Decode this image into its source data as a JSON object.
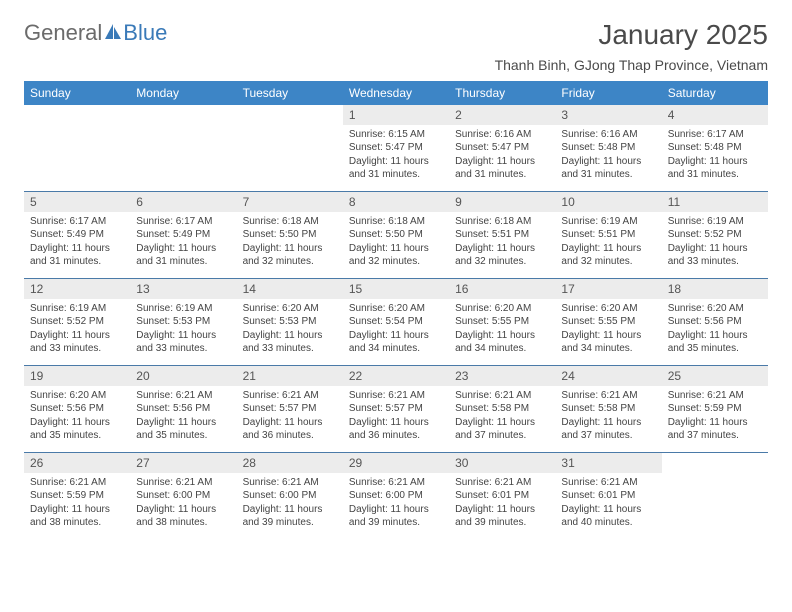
{
  "logo": {
    "text1": "General",
    "text2": "Blue"
  },
  "title": "January 2025",
  "location": "Thanh Binh, GJong Thap Province, Vietnam",
  "colors": {
    "header_bg": "#3d85c6",
    "header_text": "#ffffff",
    "daynum_bg": "#ececec",
    "border": "#4a7aa8",
    "logo_gray": "#6b6b6b",
    "logo_blue": "#3a7ab8"
  },
  "weekdays": [
    "Sunday",
    "Monday",
    "Tuesday",
    "Wednesday",
    "Thursday",
    "Friday",
    "Saturday"
  ],
  "weeks": [
    [
      null,
      null,
      null,
      {
        "n": "1",
        "sr": "6:15 AM",
        "ss": "5:47 PM",
        "dl": "11 hours and 31 minutes."
      },
      {
        "n": "2",
        "sr": "6:16 AM",
        "ss": "5:47 PM",
        "dl": "11 hours and 31 minutes."
      },
      {
        "n": "3",
        "sr": "6:16 AM",
        "ss": "5:48 PM",
        "dl": "11 hours and 31 minutes."
      },
      {
        "n": "4",
        "sr": "6:17 AM",
        "ss": "5:48 PM",
        "dl": "11 hours and 31 minutes."
      }
    ],
    [
      {
        "n": "5",
        "sr": "6:17 AM",
        "ss": "5:49 PM",
        "dl": "11 hours and 31 minutes."
      },
      {
        "n": "6",
        "sr": "6:17 AM",
        "ss": "5:49 PM",
        "dl": "11 hours and 31 minutes."
      },
      {
        "n": "7",
        "sr": "6:18 AM",
        "ss": "5:50 PM",
        "dl": "11 hours and 32 minutes."
      },
      {
        "n": "8",
        "sr": "6:18 AM",
        "ss": "5:50 PM",
        "dl": "11 hours and 32 minutes."
      },
      {
        "n": "9",
        "sr": "6:18 AM",
        "ss": "5:51 PM",
        "dl": "11 hours and 32 minutes."
      },
      {
        "n": "10",
        "sr": "6:19 AM",
        "ss": "5:51 PM",
        "dl": "11 hours and 32 minutes."
      },
      {
        "n": "11",
        "sr": "6:19 AM",
        "ss": "5:52 PM",
        "dl": "11 hours and 33 minutes."
      }
    ],
    [
      {
        "n": "12",
        "sr": "6:19 AM",
        "ss": "5:52 PM",
        "dl": "11 hours and 33 minutes."
      },
      {
        "n": "13",
        "sr": "6:19 AM",
        "ss": "5:53 PM",
        "dl": "11 hours and 33 minutes."
      },
      {
        "n": "14",
        "sr": "6:20 AM",
        "ss": "5:53 PM",
        "dl": "11 hours and 33 minutes."
      },
      {
        "n": "15",
        "sr": "6:20 AM",
        "ss": "5:54 PM",
        "dl": "11 hours and 34 minutes."
      },
      {
        "n": "16",
        "sr": "6:20 AM",
        "ss": "5:55 PM",
        "dl": "11 hours and 34 minutes."
      },
      {
        "n": "17",
        "sr": "6:20 AM",
        "ss": "5:55 PM",
        "dl": "11 hours and 34 minutes."
      },
      {
        "n": "18",
        "sr": "6:20 AM",
        "ss": "5:56 PM",
        "dl": "11 hours and 35 minutes."
      }
    ],
    [
      {
        "n": "19",
        "sr": "6:20 AM",
        "ss": "5:56 PM",
        "dl": "11 hours and 35 minutes."
      },
      {
        "n": "20",
        "sr": "6:21 AM",
        "ss": "5:56 PM",
        "dl": "11 hours and 35 minutes."
      },
      {
        "n": "21",
        "sr": "6:21 AM",
        "ss": "5:57 PM",
        "dl": "11 hours and 36 minutes."
      },
      {
        "n": "22",
        "sr": "6:21 AM",
        "ss": "5:57 PM",
        "dl": "11 hours and 36 minutes."
      },
      {
        "n": "23",
        "sr": "6:21 AM",
        "ss": "5:58 PM",
        "dl": "11 hours and 37 minutes."
      },
      {
        "n": "24",
        "sr": "6:21 AM",
        "ss": "5:58 PM",
        "dl": "11 hours and 37 minutes."
      },
      {
        "n": "25",
        "sr": "6:21 AM",
        "ss": "5:59 PM",
        "dl": "11 hours and 37 minutes."
      }
    ],
    [
      {
        "n": "26",
        "sr": "6:21 AM",
        "ss": "5:59 PM",
        "dl": "11 hours and 38 minutes."
      },
      {
        "n": "27",
        "sr": "6:21 AM",
        "ss": "6:00 PM",
        "dl": "11 hours and 38 minutes."
      },
      {
        "n": "28",
        "sr": "6:21 AM",
        "ss": "6:00 PM",
        "dl": "11 hours and 39 minutes."
      },
      {
        "n": "29",
        "sr": "6:21 AM",
        "ss": "6:00 PM",
        "dl": "11 hours and 39 minutes."
      },
      {
        "n": "30",
        "sr": "6:21 AM",
        "ss": "6:01 PM",
        "dl": "11 hours and 39 minutes."
      },
      {
        "n": "31",
        "sr": "6:21 AM",
        "ss": "6:01 PM",
        "dl": "11 hours and 40 minutes."
      },
      null
    ]
  ],
  "labels": {
    "sunrise": "Sunrise:",
    "sunset": "Sunset:",
    "daylight": "Daylight:"
  }
}
